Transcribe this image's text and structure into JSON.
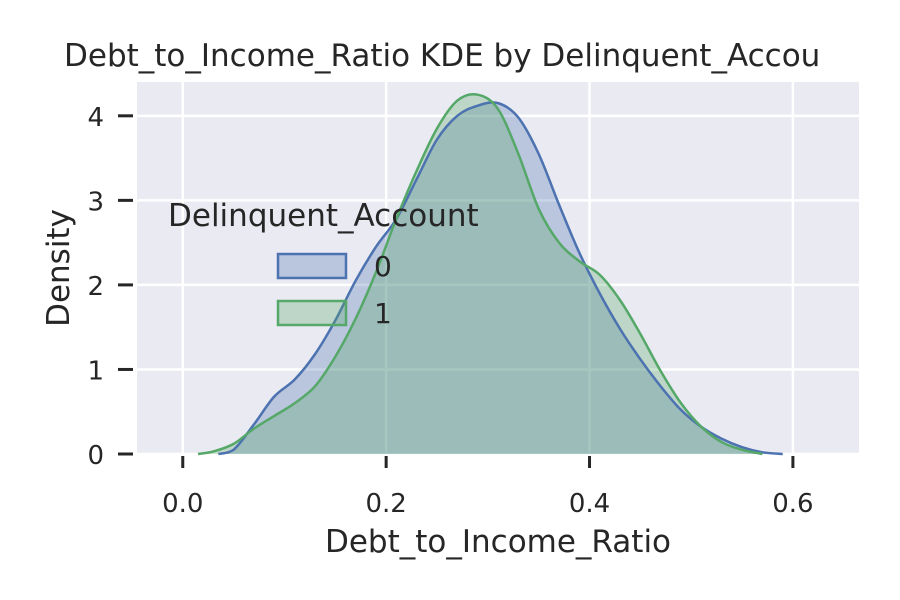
{
  "chart_data": {
    "type": "area",
    "title": "Debt_to_Income_Ratio KDE by Delinquent_Accou",
    "xlabel": "Debt_to_Income_Ratio",
    "ylabel": "Density",
    "xlim": [
      -0.045,
      0.665
    ],
    "ylim": [
      0,
      4.4
    ],
    "x_ticks": [
      0.0,
      0.2,
      0.4,
      0.6
    ],
    "x_tick_labels": [
      "0.0",
      "0.2",
      "0.4",
      "0.6"
    ],
    "y_ticks": [
      0,
      1,
      2,
      3,
      4
    ],
    "y_tick_labels": [
      "0",
      "1",
      "2",
      "3",
      "4"
    ],
    "grid": true,
    "legend": {
      "title": "Delinquent_Account",
      "placement": "center-left"
    },
    "series": [
      {
        "name": "0",
        "color": "#4c72b0",
        "x": [
          0.035,
          0.05,
          0.07,
          0.09,
          0.11,
          0.13,
          0.15,
          0.17,
          0.19,
          0.21,
          0.23,
          0.25,
          0.27,
          0.29,
          0.31,
          0.33,
          0.35,
          0.37,
          0.39,
          0.41,
          0.43,
          0.45,
          0.47,
          0.49,
          0.51,
          0.53,
          0.55,
          0.57,
          0.59
        ],
        "y": [
          0.0,
          0.05,
          0.35,
          0.68,
          0.88,
          1.18,
          1.58,
          2.05,
          2.45,
          2.78,
          3.25,
          3.72,
          4.0,
          4.12,
          4.15,
          3.98,
          3.55,
          2.95,
          2.38,
          1.9,
          1.48,
          1.12,
          0.8,
          0.52,
          0.32,
          0.18,
          0.08,
          0.02,
          0.0
        ]
      },
      {
        "name": "1",
        "color": "#55a868",
        "x": [
          0.015,
          0.03,
          0.05,
          0.07,
          0.09,
          0.11,
          0.13,
          0.15,
          0.17,
          0.19,
          0.21,
          0.23,
          0.25,
          0.27,
          0.29,
          0.31,
          0.33,
          0.35,
          0.37,
          0.39,
          0.41,
          0.43,
          0.45,
          0.47,
          0.49,
          0.51,
          0.53,
          0.55,
          0.57
        ],
        "y": [
          0.0,
          0.03,
          0.12,
          0.3,
          0.45,
          0.6,
          0.8,
          1.15,
          1.6,
          2.15,
          2.78,
          3.35,
          3.85,
          4.18,
          4.25,
          4.08,
          3.55,
          2.9,
          2.5,
          2.28,
          2.12,
          1.82,
          1.42,
          0.98,
          0.6,
          0.32,
          0.14,
          0.05,
          0.0
        ]
      }
    ]
  }
}
